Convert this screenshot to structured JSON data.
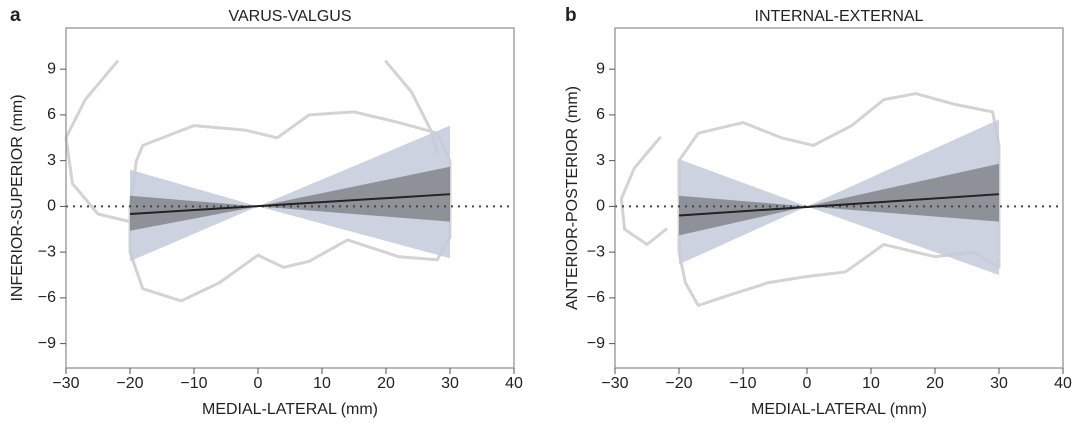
{
  "chart_data": [
    {
      "type": "band",
      "label": "a",
      "title": "VARUS-VALGUS",
      "x_label": "MEDIAL-LATERAL (mm)",
      "y_label": "INFERIOR-SUPERIOR (mm)",
      "xlim": [
        -30,
        40
      ],
      "xticks": [
        {
          "value": -30,
          "label": "−30"
        },
        {
          "value": -20,
          "label": "−20"
        },
        {
          "value": -10,
          "label": "−10"
        },
        0,
        10,
        20,
        30,
        40
      ],
      "ylim": [
        -10.6,
        11.7
      ],
      "yticks": [
        9,
        6,
        3,
        0,
        {
          "value": -3,
          "label": "−3"
        },
        {
          "value": -6,
          "label": "−6"
        },
        {
          "value": -9,
          "label": "−9"
        }
      ],
      "hline": 0,
      "bands": [
        {
          "color": "#c3cadb",
          "x": [
            -20,
            0,
            30
          ],
          "lower": [
            -3.6,
            0,
            -3.4
          ],
          "upper": [
            2.4,
            0,
            5.3
          ]
        },
        {
          "color": "#6f6f73",
          "x": [
            -20,
            0,
            30
          ],
          "lower": [
            -1.6,
            0,
            -1.0
          ],
          "upper": [
            0.7,
            0,
            2.6
          ]
        }
      ],
      "fit": {
        "color": "#222222",
        "x": [
          -20,
          30
        ],
        "y": [
          -0.5,
          0.8
        ]
      },
      "outline_color": "#d3d3d3",
      "outlines": [
        {
          "x": [
            -18,
            -10,
            -2,
            3,
            8,
            15,
            22,
            28,
            30,
            30,
            28,
            22,
            14,
            8,
            4,
            0,
            -6,
            -12,
            -18,
            -20,
            -20,
            -19,
            -18
          ],
          "y": [
            4,
            5.3,
            5,
            4.5,
            6,
            6.2,
            5.5,
            4.8,
            3,
            -2,
            -3.5,
            -3.3,
            -2.2,
            -3.6,
            -4,
            -3.2,
            -5,
            -6.2,
            -5.4,
            -3,
            0,
            3,
            4
          ]
        },
        {
          "x": [
            -22,
            -27,
            -30,
            -29,
            -25,
            -20
          ],
          "y": [
            9.5,
            7,
            4.5,
            1.5,
            -0.5,
            -1
          ]
        },
        {
          "x": [
            20,
            24,
            27,
            28
          ],
          "y": [
            9.5,
            7.5,
            5,
            3.5
          ]
        }
      ]
    },
    {
      "type": "band",
      "label": "b",
      "title": "INTERNAL-EXTERNAL",
      "x_label": "MEDIAL-LATERAL (mm)",
      "y_label": "ANTERIOR-POSTERIOR (mm)",
      "xlim": [
        -30,
        40
      ],
      "xticks": [
        {
          "value": -30,
          "label": "−30"
        },
        {
          "value": -20,
          "label": "−20"
        },
        {
          "value": -10,
          "label": "−10"
        },
        0,
        10,
        20,
        30,
        40
      ],
      "ylim": [
        -10.6,
        11.7
      ],
      "yticks": [
        9,
        6,
        3,
        0,
        {
          "value": -3,
          "label": "−3"
        },
        {
          "value": -6,
          "label": "−6"
        },
        {
          "value": -9,
          "label": "−9"
        }
      ],
      "hline": 0,
      "bands": [
        {
          "color": "#c3cadb",
          "x": [
            -20,
            0,
            30
          ],
          "lower": [
            -3.8,
            0,
            -4.5
          ],
          "upper": [
            3.1,
            0,
            5.7
          ]
        },
        {
          "color": "#6f6f73",
          "x": [
            -20,
            0,
            30
          ],
          "lower": [
            -1.9,
            0,
            -1.0
          ],
          "upper": [
            0.7,
            0,
            2.8
          ]
        }
      ],
      "fit": {
        "color": "#222222",
        "x": [
          -20,
          30
        ],
        "y": [
          -0.6,
          0.8
        ]
      },
      "outline_color": "#d3d3d3",
      "outlines": [
        {
          "x": [
            -20,
            -17,
            -10,
            -4,
            1,
            7,
            12,
            17,
            23,
            29,
            30,
            30,
            26,
            20,
            12,
            6,
            0,
            -6,
            -12,
            -17,
            -19,
            -20,
            -20
          ],
          "y": [
            3,
            4.8,
            5.5,
            4.5,
            4,
            5.3,
            7,
            7.4,
            6.7,
            6.2,
            4,
            -4,
            -3,
            -3.3,
            -2.5,
            -4.3,
            -4.6,
            -5,
            -5.8,
            -6.5,
            -5,
            -3,
            3
          ]
        },
        {
          "x": [
            -23,
            -27,
            -29,
            -28.5,
            -25,
            -22
          ],
          "y": [
            4.5,
            2.5,
            0.5,
            -1.5,
            -2.5,
            -1.5
          ]
        }
      ]
    }
  ]
}
